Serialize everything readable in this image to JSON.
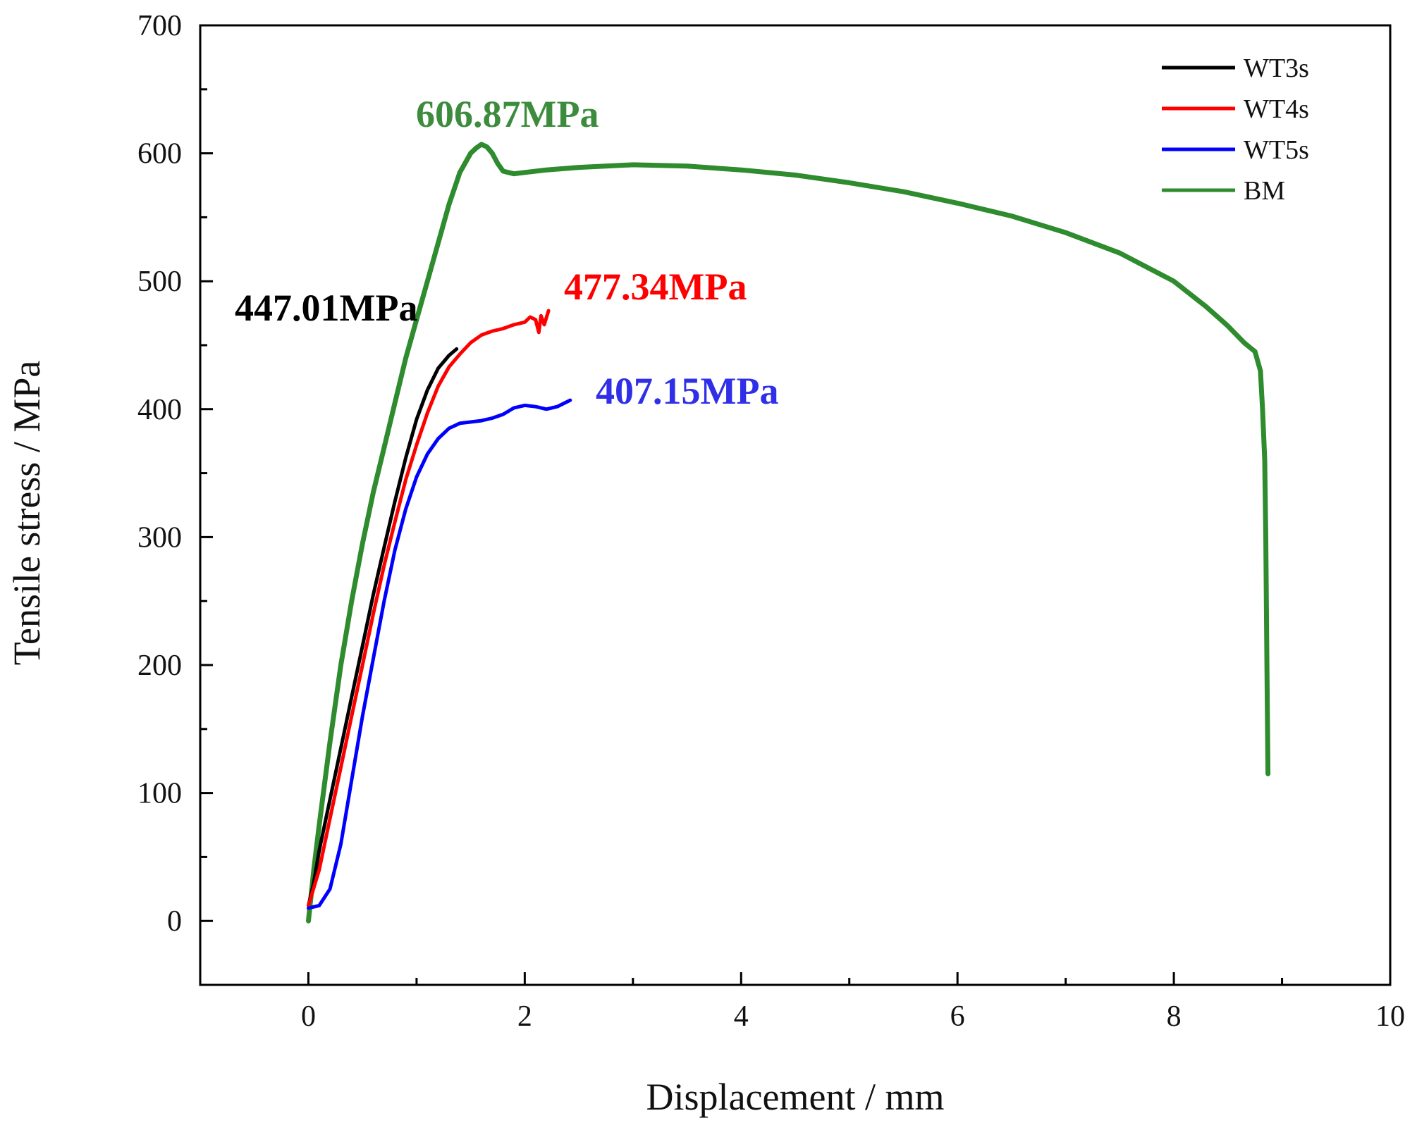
{
  "chart_data": {
    "type": "line",
    "title": "",
    "xlabel": "Displacement / mm",
    "ylabel": "Tensile stress / MPa",
    "xlim": [
      -1,
      10
    ],
    "ylim": [
      -50,
      700
    ],
    "x_ticks": [
      0,
      2,
      4,
      6,
      8,
      10
    ],
    "x_tick_labels": [
      "0",
      "2",
      "4",
      "6",
      "8",
      "10"
    ],
    "y_ticks": [
      0,
      100,
      200,
      300,
      400,
      500,
      600,
      700
    ],
    "y_tick_labels": [
      "0",
      "100",
      "200",
      "300",
      "400",
      "500",
      "600",
      "700"
    ],
    "grid": false,
    "legend_position": "top-right",
    "series": [
      {
        "name": "WT3s",
        "color": "#000000",
        "x": [
          0.0,
          0.05,
          0.1,
          0.2,
          0.3,
          0.4,
          0.5,
          0.6,
          0.7,
          0.8,
          0.9,
          1.0,
          1.1,
          1.2,
          1.3,
          1.37
        ],
        "y": [
          12,
          30,
          55,
          95,
          135,
          175,
          215,
          255,
          292,
          328,
          362,
          392,
          415,
          432,
          442,
          447
        ]
      },
      {
        "name": "WT4s",
        "color": "#ff0000",
        "x": [
          0.0,
          0.1,
          0.2,
          0.3,
          0.4,
          0.5,
          0.6,
          0.7,
          0.8,
          0.9,
          1.0,
          1.1,
          1.2,
          1.3,
          1.4,
          1.5,
          1.6,
          1.7,
          1.8,
          1.9,
          2.0,
          2.05,
          2.1,
          2.13,
          2.15,
          2.18,
          2.22
        ],
        "y": [
          12,
          40,
          80,
          120,
          160,
          200,
          240,
          278,
          312,
          345,
          372,
          397,
          418,
          433,
          443,
          452,
          458,
          461,
          463,
          466,
          468,
          472,
          470,
          460,
          473,
          466,
          477
        ]
      },
      {
        "name": "WT5s",
        "color": "#0000ff",
        "x": [
          0.0,
          0.1,
          0.2,
          0.3,
          0.4,
          0.5,
          0.6,
          0.7,
          0.8,
          0.9,
          1.0,
          1.1,
          1.2,
          1.3,
          1.4,
          1.5,
          1.6,
          1.7,
          1.8,
          1.9,
          2.0,
          2.1,
          2.2,
          2.3,
          2.42
        ],
        "y": [
          10,
          12,
          25,
          60,
          110,
          160,
          205,
          250,
          290,
          322,
          347,
          365,
          377,
          385,
          389,
          390,
          391,
          393,
          396,
          401,
          403,
          402,
          400,
          402,
          407
        ]
      },
      {
        "name": "BM",
        "color": "#2e8b2e",
        "x": [
          0.0,
          0.05,
          0.1,
          0.2,
          0.3,
          0.4,
          0.5,
          0.6,
          0.7,
          0.8,
          0.9,
          1.0,
          1.1,
          1.2,
          1.3,
          1.4,
          1.5,
          1.55,
          1.6,
          1.65,
          1.7,
          1.75,
          1.8,
          1.9,
          2.0,
          2.2,
          2.5,
          3.0,
          3.5,
          4.0,
          4.5,
          5.0,
          5.5,
          6.0,
          6.5,
          7.0,
          7.5,
          8.0,
          8.3,
          8.5,
          8.65,
          8.75,
          8.8,
          8.82,
          8.84,
          8.85,
          8.86,
          8.87
        ],
        "y": [
          0,
          40,
          75,
          140,
          200,
          250,
          295,
          335,
          370,
          405,
          440,
          470,
          500,
          530,
          560,
          585,
          600,
          604,
          607,
          605,
          600,
          592,
          586,
          584,
          585,
          587,
          589,
          591,
          590,
          587,
          583,
          577,
          570,
          561,
          551,
          538,
          522,
          500,
          480,
          465,
          452,
          445,
          430,
          400,
          360,
          300,
          200,
          115
        ]
      }
    ],
    "annotations": [
      {
        "text": "606.87MPa",
        "series": "BM",
        "color": "#3d8c3d"
      },
      {
        "text": "447.01MPa",
        "series": "WT3s",
        "color": "#000000"
      },
      {
        "text": "477.34MPa",
        "series": "WT4s",
        "color": "#ff0000"
      },
      {
        "text": "407.15MPa",
        "series": "WT5s",
        "color": "#2f2fe8"
      }
    ]
  }
}
